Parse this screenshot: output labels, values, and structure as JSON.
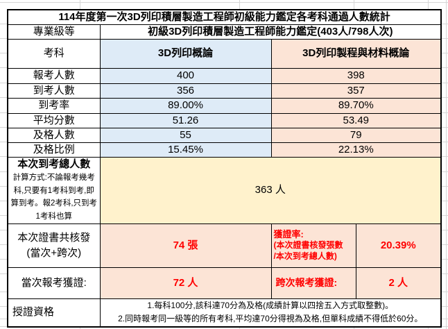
{
  "title": "114年度第一次3D列印積層製造工程師初級能力鑑定各考科通過人數統計",
  "level_row": {
    "label": "專業級等",
    "value": "初級3D列印積層製造工程師能力鑑定(403人/798人次)"
  },
  "subject_row": {
    "label": "考科",
    "col1": "3D列印概論",
    "col2": "3D列印製程與材料概論"
  },
  "stats_rows": [
    {
      "label": "報考人數",
      "col1": "400",
      "col2": "398"
    },
    {
      "label": "到考人數",
      "col1": "356",
      "col2": "357"
    },
    {
      "label": "到考率",
      "col1": "89.00%",
      "col2": "89.70%"
    },
    {
      "label": "平均分數",
      "col1": "51.26",
      "col2": "53.49"
    },
    {
      "label": "及格人數",
      "col1": "55",
      "col2": "79"
    },
    {
      "label": "及格比例",
      "col1": "15.45%",
      "col2": "22.13%"
    }
  ],
  "total_attended": {
    "label": "本次到考總人數",
    "note": "計算方式:不論報考幾考科,只要有1考科到考,即算到考。報2考科,只到考1考科也算",
    "value": "363 人"
  },
  "certificates": {
    "label_line1": "本次證書共核發",
    "label_line2": "(當次+跨次)",
    "count": "74 張",
    "rate_label_line1": "獲證率:",
    "rate_label_line2": "(本次證書核發張數",
    "rate_label_line3": "/本次到考總人數)",
    "rate_value": "20.39%"
  },
  "current_cross": {
    "current_label": "當次報考獲證:",
    "current_value": "72 人",
    "cross_label": "跨次報考獲證:",
    "cross_value": "2 人"
  },
  "qualification": {
    "label": "授證資格",
    "note_line1": "1.每科100分,該科達70分為及格(成績計算以四捨五入方式取整數)。",
    "note_line2": "2.同時報考同一級等的所有考科,平均達70分得視為及格,但單科成績不得低於60分。"
  },
  "colors": {
    "blue": "#DEEBF7",
    "peach": "#FCE4D6",
    "yellow": "#FFF2CC",
    "red": "#FF0000"
  }
}
